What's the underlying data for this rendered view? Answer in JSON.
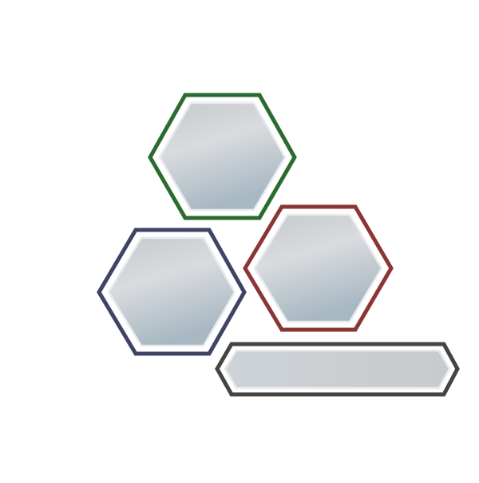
{
  "diagram": {
    "shapes": [
      {
        "id": "hexagon-top",
        "kind": "hexagon",
        "border_color": "#2a6b2f"
      },
      {
        "id": "hexagon-right",
        "kind": "hexagon",
        "border_color": "#8b3535"
      },
      {
        "id": "hexagon-left",
        "kind": "hexagon",
        "border_color": "#3f4466"
      },
      {
        "id": "banner-bar",
        "kind": "elongated-hexagon",
        "border_color": "#444444"
      }
    ],
    "fill_gradient": [
      "#c8cbce",
      "#d8dadd",
      "#a9b9c3"
    ]
  }
}
